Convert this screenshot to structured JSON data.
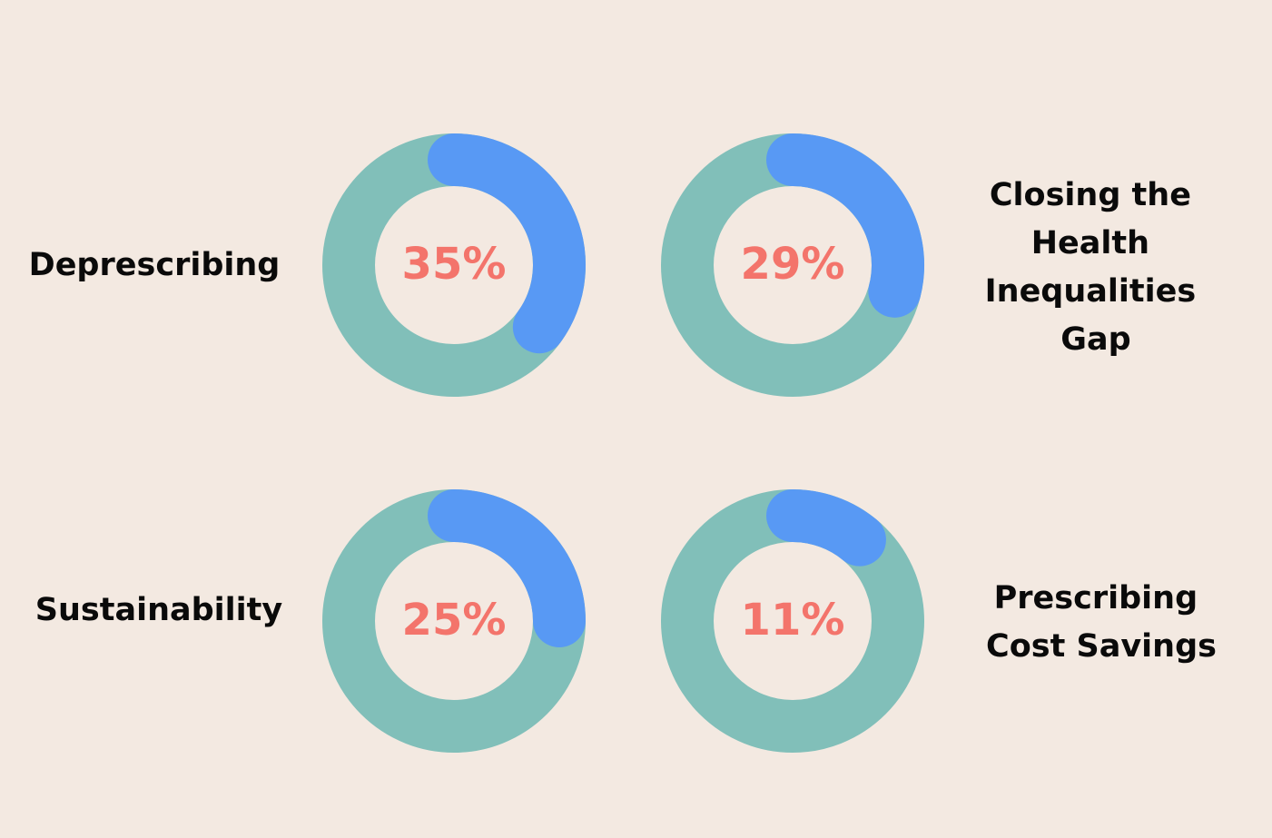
{
  "chart_data": [
    {
      "type": "donut",
      "label": "Deprescribing",
      "value": 35,
      "display": "35%"
    },
    {
      "type": "donut",
      "label": "Closing the Health Inequalities Gap",
      "label_lines": [
        "Closing the",
        "Health",
        "Inequalities",
        "Gap"
      ],
      "value": 29,
      "display": "29%"
    },
    {
      "type": "donut",
      "label": "Sustainability",
      "value": 25,
      "display": "25%"
    },
    {
      "type": "donut",
      "label": "Prescribing Cost Savings",
      "label_lines": [
        "Prescribing",
        "Cost Savings"
      ],
      "value": 11,
      "display": "11%"
    }
  ],
  "colors": {
    "background": "#f3e9e1",
    "ring": "#81bfb9",
    "progress": "#5899f4",
    "percent_text": "#f3746b",
    "label_text": "#0a0a0a"
  }
}
